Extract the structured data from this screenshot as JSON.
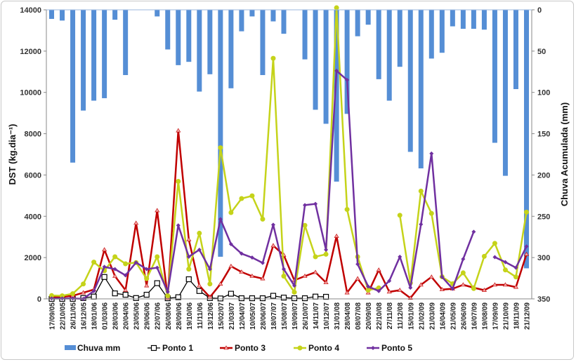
{
  "chart_data": {
    "type": "bar+line",
    "title": "",
    "ylabel_left": "DST (kg.dia⁻¹)",
    "ylabel_right": "Chuva Acumulada (mm)",
    "ylim_left": [
      0,
      14000
    ],
    "ylim_right_inverted": [
      0,
      350
    ],
    "yticks_left": [
      "0",
      "2000",
      "4000",
      "6000",
      "8000",
      "10000",
      "12000",
      "14000"
    ],
    "yticks_right": [
      "0",
      "50",
      "100",
      "150",
      "200",
      "250",
      "300",
      "350"
    ],
    "legend_position": "bottom",
    "grid": false,
    "categories": [
      "17/09/05",
      "22/10/05",
      "26/11/05",
      "16/12/05",
      "18/01/06",
      "01/03/06",
      "28/03/06",
      "20/04/06",
      "23/05/06",
      "29/06/06",
      "22/07/06",
      "26/08/06",
      "28/09/06",
      "19/10/06",
      "11/11/06",
      "13/12/06",
      "15/02/07",
      "21/03/07",
      "12/04/07",
      "10/05/07",
      "28/06/07",
      "18/07/07",
      "15/08/07",
      "19/09/07",
      "26/10/07",
      "14/11/07",
      "10/12/07",
      "31/01/08",
      "28/04/08",
      "08/07/08",
      "20/09/08",
      "22/10/08",
      "27/11/08",
      "11/12/08",
      "15/01/09",
      "21/02/09",
      "21/03/09",
      "16/04/09",
      "21/05/09",
      "26/06/09",
      "16/07/09",
      "19/08/09",
      "17/09/09",
      "21/10/09",
      "18/11/09",
      "21/12/09"
    ],
    "bars": {
      "name": "Chuva mm",
      "axis": "right",
      "color": "#558ed5",
      "values": [
        11,
        13,
        185,
        122,
        110,
        107,
        12,
        79,
        0,
        0,
        8,
        48,
        67,
        63,
        99,
        78,
        299,
        95,
        26,
        8,
        79,
        14,
        29,
        0,
        60,
        121,
        138,
        208,
        126,
        32,
        18,
        84,
        110,
        69,
        172,
        192,
        59,
        52,
        20,
        23,
        23,
        24,
        161,
        201,
        96,
        313
      ]
    },
    "series": [
      {
        "name": "Ponto 1",
        "color": "#000000",
        "marker": "square",
        "values": [
          0,
          0,
          0,
          40,
          110,
          1060,
          265,
          200,
          40,
          200,
          760,
          30,
          80,
          950,
          380,
          40,
          20,
          250,
          30,
          30,
          30,
          150,
          60,
          30,
          30,
          110,
          100,
          null,
          null,
          null,
          null,
          null,
          null,
          null,
          null,
          null,
          null,
          null,
          null,
          null,
          null,
          null,
          null,
          null,
          null,
          null
        ]
      },
      {
        "name": "Ponto 3",
        "color": "#c00000",
        "marker": "triangle",
        "values": [
          80,
          100,
          150,
          300,
          450,
          2380,
          1100,
          420,
          3670,
          640,
          4280,
          40,
          8150,
          2870,
          640,
          80,
          720,
          1580,
          1300,
          1100,
          980,
          2580,
          2120,
          900,
          1100,
          1290,
          790,
          3040,
          300,
          980,
          300,
          1400,
          340,
          420,
          40,
          680,
          1060,
          450,
          490,
          680,
          540,
          420,
          680,
          680,
          570,
          2160
        ]
      },
      {
        "name": "Ponto 4",
        "color": "#c5d31a",
        "marker": "circle",
        "values": [
          160,
          150,
          250,
          720,
          1780,
          1360,
          2040,
          1700,
          1760,
          980,
          2040,
          150,
          5690,
          1440,
          3180,
          720,
          7320,
          4180,
          4860,
          4990,
          3860,
          11650,
          1100,
          320,
          3560,
          2040,
          2160,
          14100,
          4330,
          2040,
          420,
          530,
          null,
          4050,
          770,
          5220,
          4140,
          1070,
          730,
          1260,
          500,
          2060,
          2690,
          1400,
          1060,
          4200
        ]
      },
      {
        "name": "Ponto 5",
        "color": "#7030a0",
        "marker": "diamond",
        "values": [
          20,
          20,
          20,
          0,
          380,
          1550,
          1440,
          1140,
          1760,
          1440,
          1510,
          340,
          3560,
          2040,
          2380,
          1440,
          3860,
          2650,
          2190,
          2000,
          1740,
          3590,
          1440,
          640,
          4540,
          4600,
          2380,
          11050,
          10600,
          1680,
          600,
          380,
          870,
          2040,
          540,
          3610,
          7040,
          1060,
          490,
          1930,
          3250,
          null,
          2020,
          1780,
          1510,
          2540
        ]
      }
    ]
  }
}
